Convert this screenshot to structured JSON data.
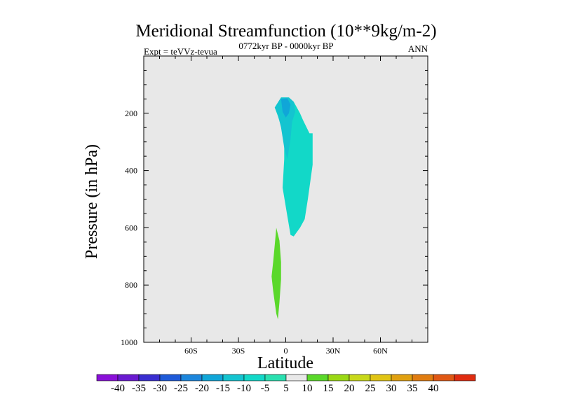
{
  "chart_data": {
    "type": "contour",
    "title": "Meridional Streamfunction (10**9kg/m-2)",
    "subtitle_left": "Expt = teVVz-tevua",
    "subtitle_center": "0772kyr BP - 0000kyr BP",
    "subtitle_right": "ANN",
    "xlabel": "Latitude",
    "ylabel": "Pressure (in hPa)",
    "xlim": [
      -90,
      90
    ],
    "ylim": [
      1000,
      0
    ],
    "y_reversed": true,
    "grid": false,
    "background": "#e8e8e8",
    "x_ticks": [
      {
        "value": -60,
        "label": "60S"
      },
      {
        "value": -30,
        "label": "30S"
      },
      {
        "value": 0,
        "label": "0"
      },
      {
        "value": 30,
        "label": "30N"
      },
      {
        "value": 60,
        "label": "60N"
      }
    ],
    "y_ticks": [
      {
        "value": 200,
        "label": "200"
      },
      {
        "value": 400,
        "label": "400"
      },
      {
        "value": 600,
        "label": "600"
      },
      {
        "value": 800,
        "label": "800"
      },
      {
        "value": 1000,
        "label": "1000"
      }
    ],
    "colorbar": {
      "labels": [
        "-40",
        "-35",
        "-30",
        "-25",
        "-20",
        "-15",
        "-10",
        "-5",
        "5",
        "10",
        "15",
        "20",
        "25",
        "30",
        "35",
        "40"
      ],
      "colors": [
        "#8a10d8",
        "#6a1ad0",
        "#3a2ed0",
        "#1e5ad8",
        "#1c86dc",
        "#10a6d8",
        "#14c4d0",
        "#12d8c8",
        "#2ae0b0",
        "#e8e8e8",
        "#5ad82a",
        "#9ad814",
        "#c8d81a",
        "#e0c414",
        "#e0a010",
        "#e07c10",
        "#e05814",
        "#e02c10"
      ]
    },
    "regions": [
      {
        "level": "-5 to 5 (interval -10 to -5)",
        "color": "#12d8c8",
        "boundary": [
          [
            -7,
            180
          ],
          [
            -3,
            145
          ],
          [
            2,
            145
          ],
          [
            5,
            160
          ],
          [
            9,
            200
          ],
          [
            11,
            225
          ],
          [
            15,
            270
          ],
          [
            17,
            270
          ],
          [
            17,
            300
          ],
          [
            17,
            380
          ],
          [
            14,
            500
          ],
          [
            12,
            570
          ],
          [
            9,
            600
          ],
          [
            5,
            630
          ],
          [
            3,
            625
          ],
          [
            1,
            560
          ],
          [
            -2,
            460
          ],
          [
            -1,
            360
          ],
          [
            -1,
            280
          ],
          [
            -5,
            210
          ]
        ]
      },
      {
        "level": "-10 to -5 (interval -15 to -10)",
        "color": "#14c4d0",
        "boundary": [
          [
            -7,
            180
          ],
          [
            -3,
            145
          ],
          [
            2,
            145
          ],
          [
            5,
            160
          ],
          [
            6,
            195
          ],
          [
            4,
            230
          ],
          [
            3,
            290
          ],
          [
            1,
            360
          ],
          [
            -1,
            320
          ],
          [
            -3,
            250
          ],
          [
            -5,
            205
          ]
        ]
      },
      {
        "level": "-15 to -10",
        "color": "#10a6d8",
        "boundary": [
          [
            -3,
            150
          ],
          [
            1,
            148
          ],
          [
            3,
            170
          ],
          [
            2,
            200
          ],
          [
            0,
            215
          ],
          [
            -2,
            195
          ]
        ]
      },
      {
        "level": "5 to 10",
        "color": "#5ad82a",
        "boundary": [
          [
            -6,
            600
          ],
          [
            -4,
            645
          ],
          [
            -3,
            720
          ],
          [
            -3,
            780
          ],
          [
            -4,
            860
          ],
          [
            -5,
            920
          ],
          [
            -6,
            900
          ],
          [
            -8,
            820
          ],
          [
            -9,
            770
          ],
          [
            -8,
            720
          ],
          [
            -7,
            660
          ]
        ]
      }
    ]
  }
}
